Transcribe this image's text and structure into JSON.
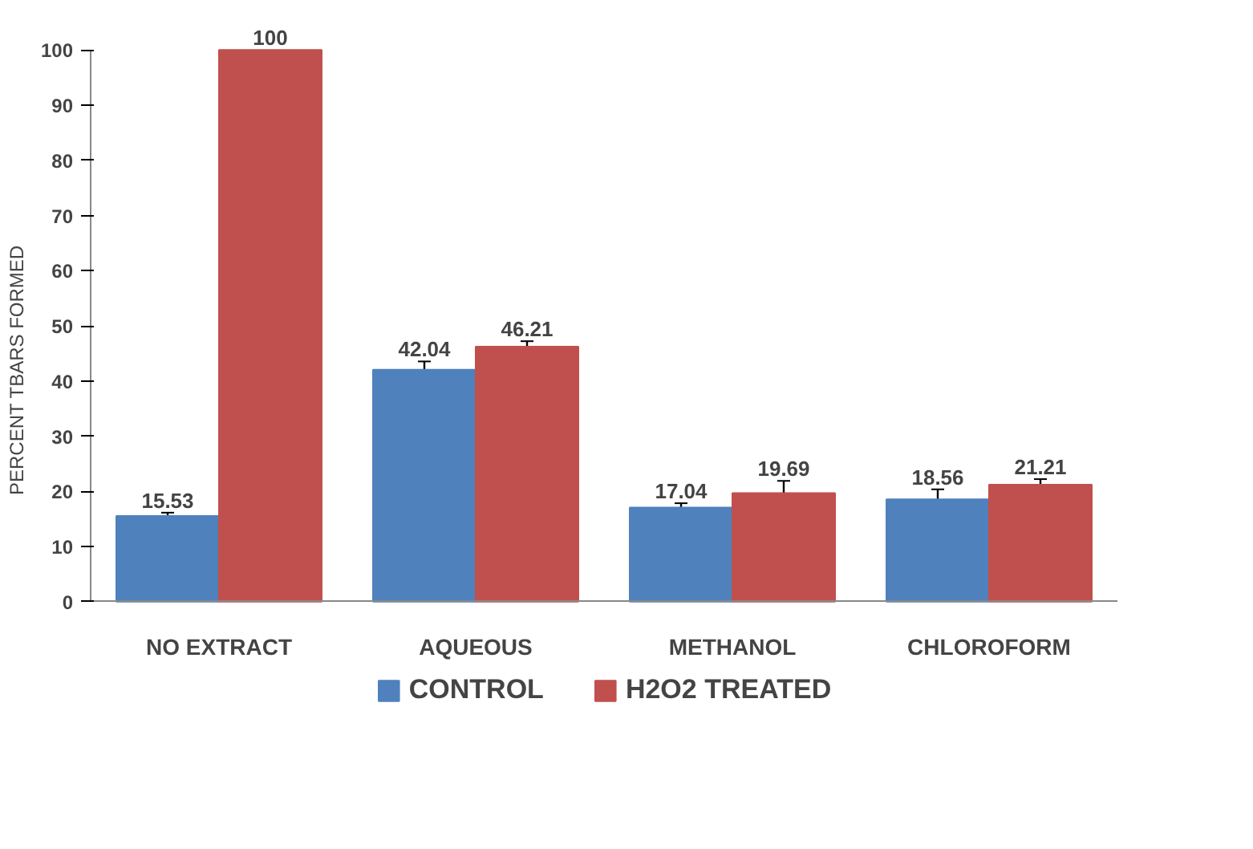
{
  "chart_data": {
    "type": "bar",
    "ylabel": "PERCENT TBARS FORMED",
    "categories": [
      "NO EXTRACT",
      "AQUEOUS",
      "METHANOL",
      "CHLOROFORM"
    ],
    "series": [
      {
        "name": "CONTROL",
        "color": "#4f81bd",
        "values": [
          15.53,
          42.04,
          17.04,
          18.56
        ],
        "errors": [
          0.6,
          1.5,
          0.8,
          1.8
        ]
      },
      {
        "name": "H2O2 TREATED",
        "color": "#c0504d",
        "values": [
          100,
          46.21,
          19.69,
          21.21
        ],
        "errors": [
          null,
          1,
          2.2,
          1
        ]
      }
    ],
    "ylim": [
      0,
      100
    ],
    "yticks": [
      0,
      10,
      20,
      30,
      40,
      50,
      60,
      70,
      80,
      90,
      100
    ],
    "grid": false,
    "legend": "bottom",
    "data_labels": true
  }
}
